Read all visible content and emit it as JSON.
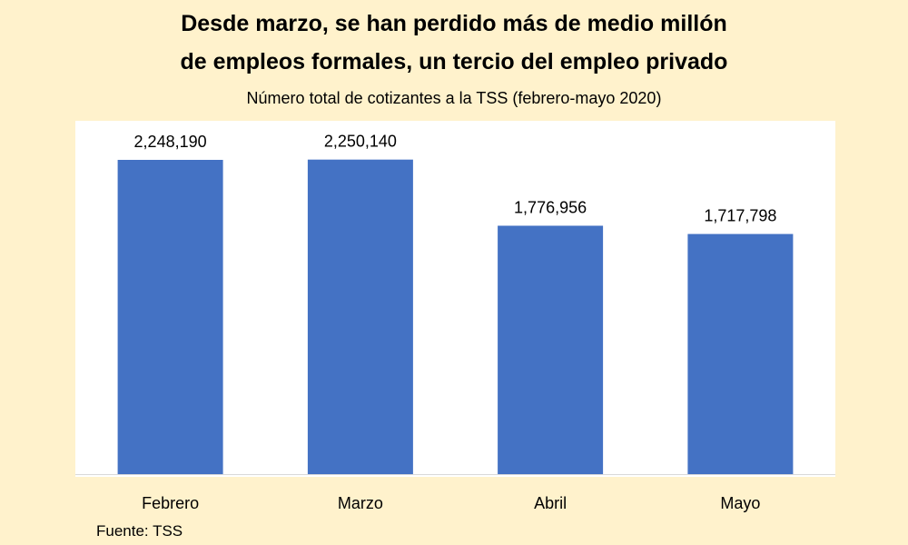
{
  "chart_data": {
    "type": "bar",
    "title": "Desde marzo, se han perdido más de medio millón de empleos formales, un tercio del empleo privado",
    "title_lines": [
      "Desde marzo, se han perdido más de medio millón",
      "de empleos formales, un tercio del empleo privado"
    ],
    "subtitle": "Número total de cotizantes a la TSS  (febrero-mayo 2020)",
    "categories": [
      "Febrero",
      "Marzo",
      "Abril",
      "Mayo"
    ],
    "values": [
      2248190,
      2250140,
      1776956,
      1717798
    ],
    "data_labels": [
      "2,248,190",
      "2,250,140",
      "1,776,956",
      "1,717,798"
    ],
    "xlabel": "",
    "ylabel": "",
    "ylim": [
      0,
      2500000
    ],
    "grid": false,
    "legend": "none",
    "bar_color": "#4472C4",
    "source": "Fuente: TSS"
  },
  "colors": {
    "background": "#FFF2CC",
    "plot_background": "#FFFFFF",
    "bar": "#4472C4",
    "axis": "#D9D9D9"
  }
}
